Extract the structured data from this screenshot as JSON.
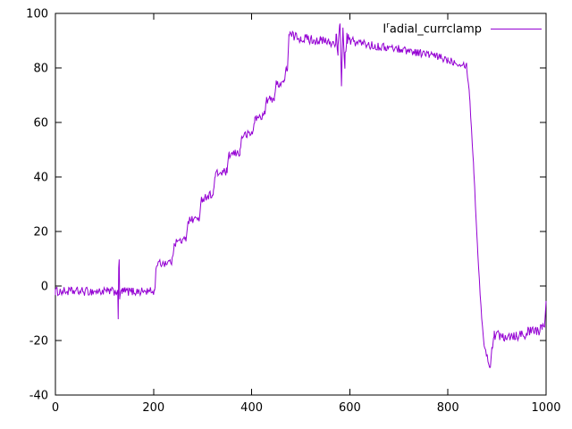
{
  "legend": {
    "prefix": "I",
    "sup": "r",
    "rest": "adial_currclamp",
    "full_label": "I^radial_currclamp"
  },
  "colors": {
    "line": "#9400d3",
    "axis": "#000000",
    "background": "#ffffff",
    "text": "#000000"
  },
  "axes": {
    "x": {
      "min": 0,
      "max": 1000,
      "ticks": [
        0,
        200,
        400,
        600,
        800,
        1000
      ]
    },
    "y": {
      "min": -40,
      "max": 100,
      "ticks": [
        -40,
        -20,
        0,
        20,
        40,
        60,
        80,
        100
      ]
    }
  },
  "chart_data": {
    "type": "line",
    "title": "",
    "xlabel": "",
    "ylabel": "",
    "xlim": [
      0,
      1000
    ],
    "ylim": [
      -40,
      100
    ],
    "grid": false,
    "legend_position": "top-right",
    "series": [
      {
        "name": "I^radial_currclamp",
        "color": "#9400d3",
        "description": "noisy signal: baseline ~-2 (0-200) with spike at ~128, staircase rise to ~92 by x=480, noisy plateau ~90 with glitch burst near 570-600, slow decline to ~81 at x=840, sharp drop to ~-30 near x=886, noisy tail ~-18 to x=1000 ending ~-5",
        "keypoints": [
          [
            0,
            -2,
            1.6
          ],
          [
            124,
            -2,
            1.6
          ],
          [
            127,
            -2,
            0.5
          ],
          [
            128,
            -12,
            0.5
          ],
          [
            129,
            7,
            0.5
          ],
          [
            130,
            10,
            0.5
          ],
          [
            131,
            -5,
            0.5
          ],
          [
            133,
            -2,
            0.5
          ],
          [
            136,
            -2,
            1.6
          ],
          [
            202,
            -2,
            1.6
          ],
          [
            206,
            8,
            1.5
          ],
          [
            238,
            9,
            1.5
          ],
          [
            242,
            16,
            1.5
          ],
          [
            266,
            17,
            1.5
          ],
          [
            270,
            24,
            1.5
          ],
          [
            294,
            25,
            1.5
          ],
          [
            298,
            32,
            1.5
          ],
          [
            322,
            34,
            1.5
          ],
          [
            326,
            41,
            1.5
          ],
          [
            350,
            42,
            1.5
          ],
          [
            354,
            48,
            1.5
          ],
          [
            376,
            49,
            1.5
          ],
          [
            380,
            55,
            1.5
          ],
          [
            402,
            56,
            1.5
          ],
          [
            406,
            61,
            1.5
          ],
          [
            426,
            63,
            1.5
          ],
          [
            430,
            68,
            1.5
          ],
          [
            446,
            69,
            1.5
          ],
          [
            450,
            74,
            1.5
          ],
          [
            466,
            75,
            1.5
          ],
          [
            470,
            79,
            1.5
          ],
          [
            473,
            80,
            1
          ],
          [
            476,
            92,
            1.8
          ],
          [
            500,
            91,
            1.8
          ],
          [
            540,
            90,
            1.8
          ],
          [
            565,
            89,
            1.8
          ],
          [
            572,
            91,
            3
          ],
          [
            576,
            85,
            4
          ],
          [
            580,
            95,
            3
          ],
          [
            583,
            76,
            3
          ],
          [
            586,
            93,
            3
          ],
          [
            590,
            82,
            3
          ],
          [
            594,
            91,
            2
          ],
          [
            600,
            90,
            1.8
          ],
          [
            650,
            88,
            1.5
          ],
          [
            700,
            87,
            1.5
          ],
          [
            760,
            85,
            1.5
          ],
          [
            800,
            83,
            1.5
          ],
          [
            838,
            81,
            1.2
          ],
          [
            844,
            70,
            0.8
          ],
          [
            852,
            45,
            0.8
          ],
          [
            860,
            15,
            0.8
          ],
          [
            868,
            -10,
            0.8
          ],
          [
            874,
            -22,
            0.8
          ],
          [
            880,
            -26,
            1
          ],
          [
            886,
            -30,
            0.8
          ],
          [
            890,
            -22,
            1.5
          ],
          [
            894,
            -18,
            2.2
          ],
          [
            940,
            -18,
            2.2
          ],
          [
            992,
            -16,
            2.2
          ],
          [
            997,
            -14,
            1
          ],
          [
            1000,
            -5,
            0.5
          ]
        ]
      }
    ]
  }
}
